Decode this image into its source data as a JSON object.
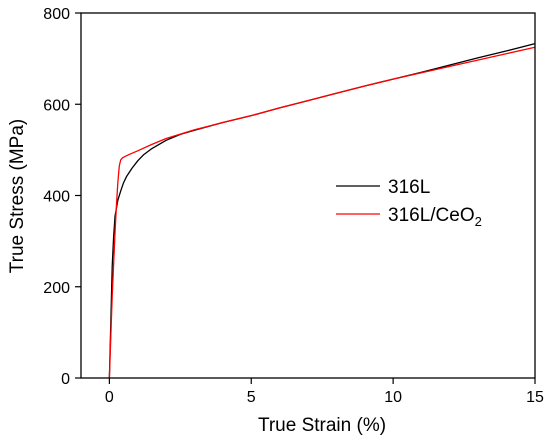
{
  "chart_data": {
    "type": "line",
    "xlabel": "True Strain (%)",
    "ylabel": "True Stress (MPa)",
    "xlim": [
      -1,
      15
    ],
    "ylim": [
      0,
      800
    ],
    "x_ticks": [
      0,
      5,
      10,
      15
    ],
    "y_ticks": [
      0,
      200,
      400,
      600,
      800
    ],
    "x_tick_labels": [
      "0",
      "5",
      "10",
      "15"
    ],
    "y_tick_labels": [
      "0",
      "200",
      "400",
      "600",
      "800"
    ],
    "legend_position": "right-center",
    "grid": false,
    "series": [
      {
        "name": "316L",
        "color": "#000000",
        "x": [
          0,
          0.05,
          0.1,
          0.15,
          0.2,
          0.3,
          0.4,
          0.5,
          0.6,
          0.8,
          1.0,
          1.2,
          1.5,
          2.0,
          2.5,
          3.0,
          4.0,
          5.0,
          6.0,
          7.0,
          8.0,
          9.0,
          10.0,
          11.0,
          12.0,
          13.0,
          14.0,
          15.0
        ],
        "y": [
          0,
          120,
          245,
          310,
          355,
          390,
          410,
          428,
          441,
          460,
          476,
          489,
          503,
          521,
          534,
          543,
          560,
          575,
          592,
          608,
          624,
          640,
          655,
          670,
          686,
          702,
          717,
          733
        ]
      },
      {
        "name": "316L/CeO",
        "name_subscript": "2",
        "color": "#ff0000",
        "x": [
          0,
          0.1,
          0.2,
          0.25,
          0.3,
          0.35,
          0.4,
          0.45,
          0.5,
          0.7,
          1.0,
          1.5,
          2.0,
          3.0,
          4.0,
          5.0,
          6.0,
          7.0,
          8.0,
          9.0,
          10.0,
          11.0,
          12.0,
          13.0,
          14.0,
          15.0
        ],
        "y": [
          0,
          180,
          320,
          380,
          430,
          465,
          478,
          482,
          484,
          490,
          498,
          512,
          525,
          544,
          560,
          575,
          592,
          608,
          624,
          640,
          655,
          669,
          683,
          697,
          711,
          725
        ]
      }
    ]
  }
}
